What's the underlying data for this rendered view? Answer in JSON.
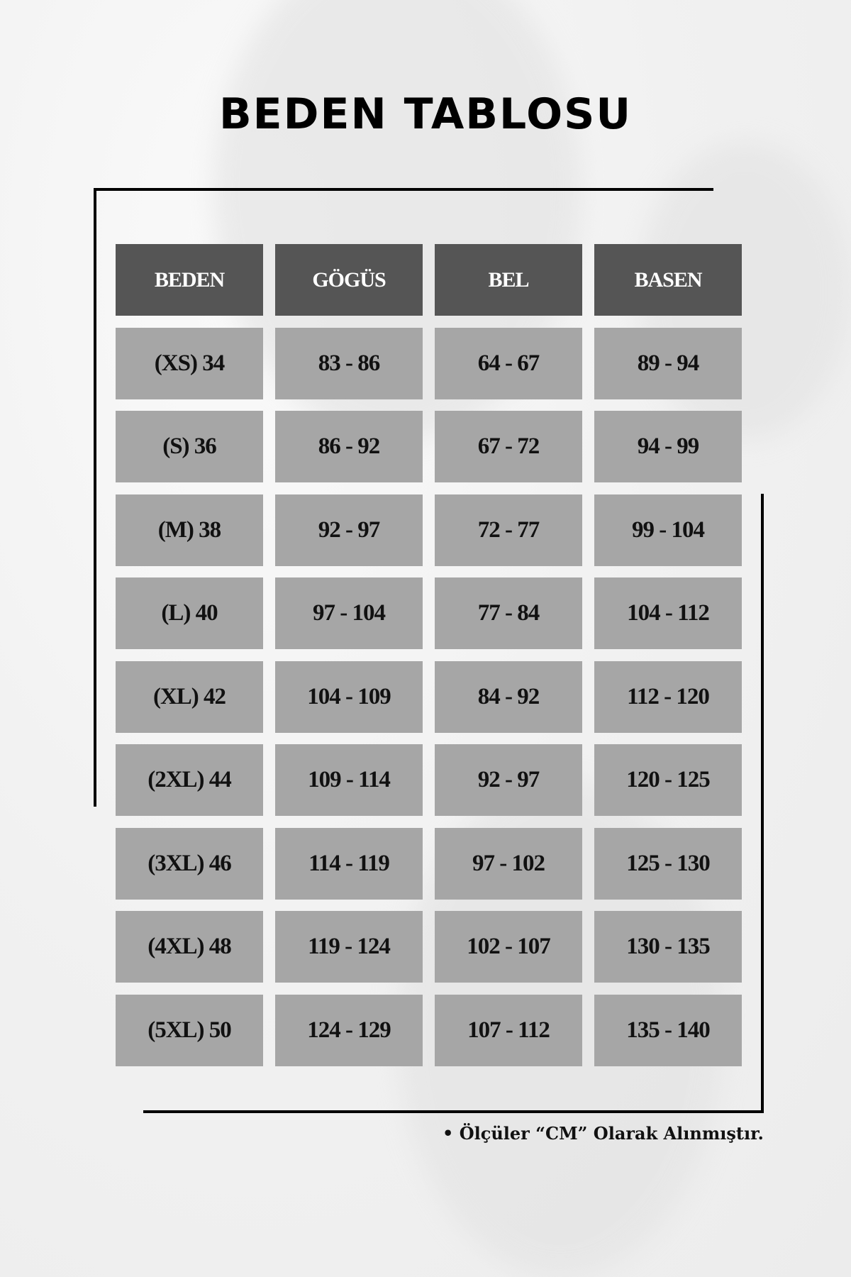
{
  "title": "BEDEN TABLOSU",
  "table": {
    "headers": [
      "BEDEN",
      "GÖGÜS",
      "BEL",
      "BASEN"
    ],
    "rows": [
      [
        "(XS) 34",
        "83 - 86",
        "64 - 67",
        "89 - 94"
      ],
      [
        "(S) 36",
        "86 - 92",
        "67 - 72",
        "94 - 99"
      ],
      [
        "(M) 38",
        "92 - 97",
        "72 - 77",
        "99 - 104"
      ],
      [
        "(L) 40",
        "97 - 104",
        "77 - 84",
        "104 - 112"
      ],
      [
        "(XL) 42",
        "104 - 109",
        "84 - 92",
        "112 - 120"
      ],
      [
        "(2XL) 44",
        "109 - 114",
        "92 - 97",
        "120 - 125"
      ],
      [
        "(3XL) 46",
        "114 - 119",
        "97 - 102",
        "125 - 130"
      ],
      [
        "(4XL) 48",
        "119 - 124",
        "102 - 107",
        "130 - 135"
      ],
      [
        "(5XL) 50",
        "124 - 129",
        "107 - 112",
        "135 - 140"
      ]
    ]
  },
  "note": "• Ölçüler “CM” Olarak Alınmıştır.",
  "colors": {
    "header_bg": "#555555",
    "cell_bg": "#a6a6a6",
    "background": "#f0f0f0"
  }
}
